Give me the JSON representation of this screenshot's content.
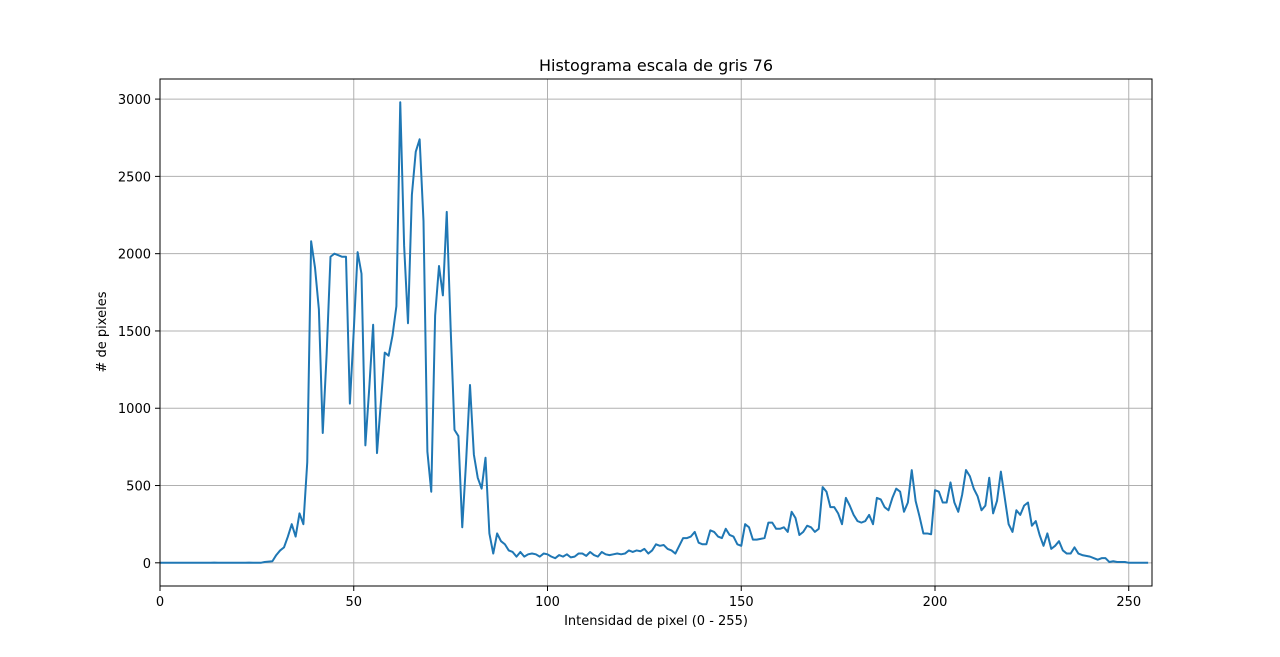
{
  "chart_data": {
    "type": "line",
    "title": "Histograma escala de gris 76",
    "xlabel": "Intensidad de pixel (0 - 255)",
    "ylabel": "# de pixeles",
    "xlim": [
      0,
      256
    ],
    "ylim": [
      -150,
      3130
    ],
    "xticks": [
      0,
      50,
      100,
      150,
      200,
      250
    ],
    "yticks": [
      0,
      500,
      1000,
      1500,
      2000,
      2500,
      3000
    ],
    "grid": true,
    "series": [
      {
        "color": "#1f77b4",
        "values": [
          0,
          0,
          0,
          0,
          0,
          0,
          0,
          0,
          0,
          0,
          0,
          0,
          0,
          0,
          1,
          0,
          0,
          0,
          0,
          0,
          0,
          0,
          0,
          1,
          0,
          0,
          0,
          5,
          8,
          10,
          50,
          80,
          100,
          170,
          250,
          170,
          320,
          250,
          650,
          2080,
          1910,
          1640,
          840,
          1350,
          1980,
          2000,
          1990,
          1980,
          1980,
          1030,
          1500,
          2010,
          1870,
          760,
          1130,
          1540,
          710,
          1040,
          1360,
          1340,
          1470,
          1660,
          2980,
          2050,
          1550,
          2380,
          2660,
          2740,
          2210,
          720,
          460,
          1600,
          1920,
          1730,
          2270,
          1520,
          860,
          820,
          230,
          660,
          1150,
          700,
          550,
          480,
          680,
          190,
          60,
          190,
          140,
          120,
          80,
          70,
          40,
          70,
          40,
          55,
          60,
          55,
          40,
          60,
          55,
          40,
          30,
          50,
          40,
          55,
          35,
          40,
          60,
          60,
          45,
          70,
          50,
          40,
          70,
          55,
          50,
          55,
          60,
          55,
          60,
          80,
          70,
          80,
          75,
          90,
          60,
          80,
          120,
          110,
          115,
          90,
          80,
          60,
          110,
          160,
          160,
          170,
          200,
          130,
          120,
          120,
          210,
          200,
          170,
          160,
          220,
          180,
          170,
          120,
          110,
          250,
          230,
          150,
          150,
          155,
          160,
          260,
          260,
          220,
          220,
          230,
          200,
          330,
          290,
          180,
          200,
          240,
          230,
          200,
          220,
          490,
          460,
          360,
          360,
          320,
          250,
          420,
          370,
          310,
          270,
          260,
          270,
          310,
          250,
          420,
          410,
          360,
          340,
          420,
          480,
          460,
          330,
          390,
          600,
          400,
          300,
          190,
          190,
          185,
          470,
          460,
          390,
          390,
          520,
          390,
          330,
          440,
          600,
          560,
          480,
          430,
          340,
          370,
          550,
          320,
          400,
          590,
          420,
          250,
          200,
          340,
          310,
          370,
          390,
          240,
          270,
          180,
          110,
          190,
          90,
          110,
          140,
          80,
          60,
          60,
          100,
          60,
          50,
          45,
          40,
          30,
          20,
          30,
          30,
          5,
          10,
          5,
          5,
          5,
          0,
          0,
          0,
          0,
          0,
          0
        ]
      }
    ]
  }
}
